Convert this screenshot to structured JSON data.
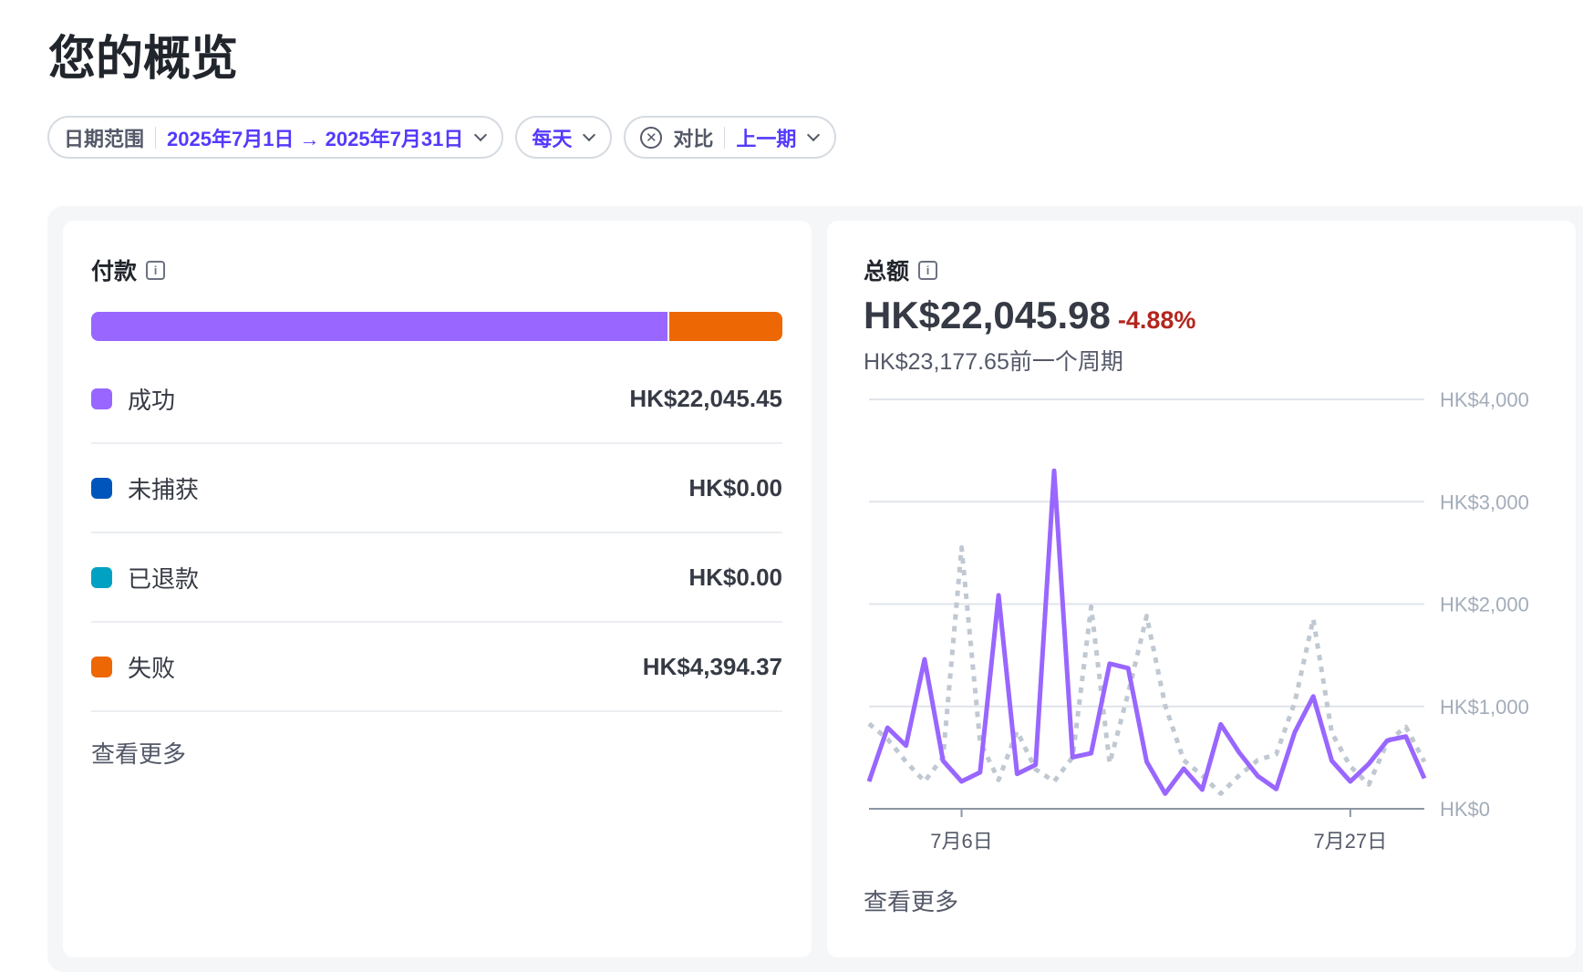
{
  "page_title": "您的概览",
  "filters": {
    "date_label": "日期范围",
    "date_value": "2025年7月1日 → 2025年7月31日",
    "interval": "每天",
    "compare_label": "对比",
    "compare_value": "上一期"
  },
  "payments": {
    "title": "付款",
    "breakdown": [
      {
        "label": "成功",
        "amount": "HK$22,045.45",
        "color": "#9966ff",
        "value": 22045.45
      },
      {
        "label": "未捕获",
        "amount": "HK$0.00",
        "color": "#0055bc",
        "value": 0
      },
      {
        "label": "已退款",
        "amount": "HK$0.00",
        "color": "#00a1c2",
        "value": 0
      },
      {
        "label": "失败",
        "amount": "HK$4,394.37",
        "color": "#ed6704",
        "value": 4394.37
      }
    ],
    "more": "查看更多"
  },
  "total": {
    "title": "总额",
    "amount": "HK$22,045.98",
    "change": "-4.88%",
    "previous": "HK$23,177.65前一个周期",
    "more": "查看更多"
  },
  "chart_data": {
    "type": "line",
    "x": [
      "7月1日",
      "7月2日",
      "7月3日",
      "7月4日",
      "7月5日",
      "7月6日",
      "7月7日",
      "7月8日",
      "7月9日",
      "7月10日",
      "7月11日",
      "7月12日",
      "7月13日",
      "7月14日",
      "7月15日",
      "7月16日",
      "7月17日",
      "7月18日",
      "7月19日",
      "7月20日",
      "7月21日",
      "7月22日",
      "7月23日",
      "7月24日",
      "7月25日",
      "7月26日",
      "7月27日",
      "7月28日",
      "7月29日",
      "7月30日",
      "7月31日"
    ],
    "x_ticks": [
      "7月6日",
      "7月27日"
    ],
    "y_ticks": [
      "HK$0",
      "HK$1,000",
      "HK$2,000",
      "HK$3,000",
      "HK$4,000"
    ],
    "ylim": [
      0,
      4000
    ],
    "grid": true,
    "series": [
      {
        "style": "solid",
        "color": "#9966ff",
        "values": [
          267,
          792,
          617,
          1460,
          469,
          267,
          356,
          2086,
          341,
          430,
          3303,
          504,
          543,
          1418,
          1374,
          460,
          148,
          392,
          187,
          825,
          549,
          320,
          193,
          748,
          1098,
          469,
          267,
          439,
          668,
          706,
          297
        ]
      },
      {
        "style": "dotted",
        "color": "#c0c8d2",
        "values": [
          831,
          682,
          460,
          267,
          504,
          2552,
          653,
          282,
          757,
          386,
          267,
          504,
          1973,
          445,
          1128,
          1884,
          1009,
          475,
          326,
          148,
          326,
          475,
          534,
          1039,
          1855,
          742,
          415,
          237,
          653,
          801,
          460
        ]
      }
    ]
  }
}
